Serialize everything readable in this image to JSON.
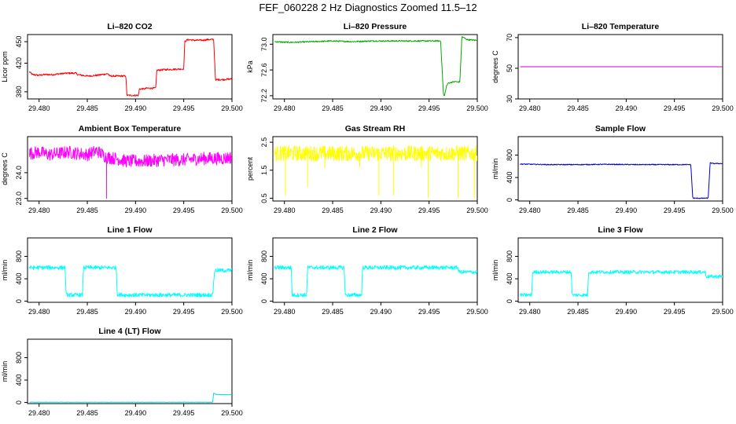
{
  "page_title": "FEF_060228  2 Hz Diagnostics Zoomed 11.5–12",
  "chart_data": [
    {
      "type": "line",
      "title": "Li–820 CO2",
      "ylabel": "Licor ppm",
      "color": "#ff0000",
      "xlim": [
        29.4788,
        29.5
      ],
      "ylim": [
        370,
        460
      ],
      "xticks": [
        "29.480",
        "29.485",
        "29.490",
        "29.495",
        "29.500"
      ],
      "yticks": [
        "380",
        "420",
        "450"
      ],
      "series": [
        {
          "x": [
            29.479,
            29.4793,
            29.48,
            29.4805,
            29.4815,
            29.482,
            29.483,
            29.4838,
            29.484,
            29.485,
            29.486,
            29.487,
            29.4872,
            29.4873,
            29.488,
            29.489,
            29.4891,
            29.4903,
            29.4904,
            29.491,
            29.4911,
            29.4921,
            29.4922,
            29.493,
            29.4931,
            29.495,
            29.4951,
            29.4953,
            29.4955,
            29.496,
            29.497,
            29.4975,
            29.4981,
            29.4983,
            29.4984,
            29.499,
            29.5
          ],
          "y": [
            408,
            404,
            403,
            404,
            404,
            405,
            406,
            406,
            404,
            402,
            403,
            405,
            405,
            402,
            402,
            402,
            375,
            375,
            384,
            384,
            385,
            385,
            410,
            411,
            411,
            412,
            450,
            452,
            453,
            452,
            452,
            453,
            453,
            395,
            397,
            397,
            398
          ],
          "jitter": 1.2
        }
      ]
    },
    {
      "type": "line",
      "title": "Li–820 Pressure",
      "ylabel": "kPa",
      "color": "#00aa00",
      "xlim": [
        29.4788,
        29.5
      ],
      "ylim": [
        72.15,
        73.15
      ],
      "xticks": [
        "29.480",
        "29.485",
        "29.490",
        "29.495",
        "29.500"
      ],
      "yticks": [
        "72.2",
        "72.6",
        "73.0"
      ],
      "series": [
        {
          "x": [
            29.479,
            29.48,
            29.481,
            29.483,
            29.485,
            29.487,
            29.489,
            29.491,
            29.493,
            29.495,
            29.4962,
            29.4965,
            29.4966,
            29.4968,
            29.497,
            29.4972,
            29.4973,
            29.4978,
            29.498,
            29.4982,
            29.4984,
            29.4986,
            29.499,
            29.5
          ],
          "y": [
            73.04,
            73.03,
            73.03,
            73.04,
            73.05,
            73.04,
            73.05,
            73.05,
            73.05,
            73.05,
            73.05,
            72.2,
            72.2,
            72.35,
            72.4,
            72.4,
            72.41,
            72.42,
            72.41,
            72.42,
            73.12,
            73.1,
            73.07,
            73.06
          ],
          "jitter": 0.01
        }
      ]
    },
    {
      "type": "line",
      "title": "Li–820 Temperature",
      "ylabel": "degrees C",
      "color": "#cc00cc",
      "xlim": [
        29.4788,
        29.5
      ],
      "ylim": [
        30,
        72
      ],
      "xticks": [
        "29.480",
        "29.485",
        "29.490",
        "29.495",
        "29.500"
      ],
      "yticks": [
        "30",
        "50",
        "70"
      ],
      "series": [
        {
          "x": [
            29.479,
            29.5
          ],
          "y": [
            51,
            51
          ],
          "jitter": 0
        }
      ]
    },
    {
      "type": "line",
      "title": "Ambient Box Temperature",
      "ylabel": "degrees C",
      "color": "#ff00ff",
      "xlim": [
        29.4788,
        29.5
      ],
      "ylim": [
        22.9,
        25.4
      ],
      "xticks": [
        "29.480",
        "29.485",
        "29.490",
        "29.495",
        "29.500"
      ],
      "yticks": [
        "23.0",
        "24.0"
      ],
      "series": [
        {
          "x": [
            29.479,
            29.48,
            29.481,
            29.483,
            29.485,
            29.486,
            29.487,
            29.488,
            29.489,
            29.491,
            29.493,
            29.495,
            29.497,
            29.499,
            29.5
          ],
          "y": [
            24.75,
            24.8,
            24.7,
            24.8,
            24.7,
            24.85,
            24.6,
            24.55,
            24.45,
            24.45,
            24.5,
            24.5,
            24.55,
            24.55,
            24.6
          ],
          "jitter": 0.25,
          "spike": {
            "x": 29.487,
            "y": 23.0
          }
        }
      ]
    },
    {
      "type": "line",
      "title": "Gas Stream RH",
      "ylabel": "percent",
      "color": "#ffff00",
      "xlim": [
        29.4788,
        29.5
      ],
      "ylim": [
        0.4,
        2.7
      ],
      "xticks": [
        "29.480",
        "29.485",
        "29.490",
        "29.495",
        "29.500"
      ],
      "yticks": [
        "0.5",
        "1.5",
        "2.5"
      ],
      "series": [
        {
          "x": [
            29.479,
            29.5
          ],
          "y": [
            2.1,
            2.1
          ],
          "jitter": 0.28,
          "dips": [
            [
              29.4801,
              0.6
            ],
            [
              29.4824,
              0.9
            ],
            [
              29.4842,
              1.6
            ],
            [
              29.4878,
              1.6
            ],
            [
              29.4898,
              0.6
            ],
            [
              29.4913,
              0.6
            ],
            [
              29.4942,
              1.6
            ],
            [
              29.4949,
              0.5
            ],
            [
              29.498,
              0.5
            ],
            [
              29.4997,
              0.5
            ]
          ]
        }
      ]
    },
    {
      "type": "line",
      "title": "Sample Flow",
      "ylabel": "ml/min",
      "color": "#0000cc",
      "xlim": [
        29.4788,
        29.5
      ],
      "ylim": [
        -20,
        1130
      ],
      "xticks": [
        "29.480",
        "29.485",
        "29.490",
        "29.495",
        "29.500"
      ],
      "yticks": [
        "0",
        "400",
        "800"
      ],
      "series": [
        {
          "x": [
            29.479,
            29.482,
            29.485,
            29.488,
            29.491,
            29.494,
            29.4967,
            29.4969,
            29.4985,
            29.4987,
            29.499,
            29.5
          ],
          "y": [
            640,
            630,
            630,
            635,
            630,
            630,
            630,
            30,
            30,
            660,
            650,
            650
          ],
          "jitter": 8
        }
      ]
    },
    {
      "type": "line",
      "title": "Line 1 Flow",
      "ylabel": "ml/min",
      "color": "#00ffff",
      "xlim": [
        29.4788,
        29.5
      ],
      "ylim": [
        -20,
        1130
      ],
      "xticks": [
        "29.480",
        "29.485",
        "29.490",
        "29.495",
        "29.500"
      ],
      "yticks": [
        "0",
        "400",
        "800"
      ],
      "series": [
        {
          "x": [
            29.479,
            29.4827,
            29.4828,
            29.4845,
            29.4846,
            29.488,
            29.4881,
            29.489,
            29.492,
            29.495,
            29.498,
            29.4982,
            29.5
          ],
          "y": [
            600,
            600,
            110,
            110,
            600,
            600,
            120,
            110,
            110,
            110,
            110,
            550,
            550
          ],
          "jitter": 35
        }
      ]
    },
    {
      "type": "line",
      "title": "Line 2 Flow",
      "ylabel": "ml/min",
      "color": "#00ffff",
      "xlim": [
        29.4788,
        29.5
      ],
      "ylim": [
        -20,
        1130
      ],
      "xticks": [
        "29.480",
        "29.485",
        "29.490",
        "29.495",
        "29.500"
      ],
      "yticks": [
        "0",
        "400",
        "800"
      ],
      "series": [
        {
          "x": [
            29.479,
            29.4807,
            29.4808,
            29.4823,
            29.4824,
            29.4862,
            29.4863,
            29.488,
            29.4881,
            29.498,
            29.4981,
            29.5
          ],
          "y": [
            600,
            600,
            110,
            110,
            600,
            600,
            110,
            110,
            600,
            600,
            520,
            520
          ],
          "jitter": 35
        }
      ]
    },
    {
      "type": "line",
      "title": "Line 3 Flow",
      "ylabel": "ml/min",
      "color": "#00ffff",
      "xlim": [
        29.4788,
        29.5
      ],
      "ylim": [
        -20,
        1130
      ],
      "xticks": [
        "29.480",
        "29.485",
        "29.490",
        "29.495",
        "29.500"
      ],
      "yticks": [
        "0",
        "400",
        "800"
      ],
      "series": [
        {
          "x": [
            29.479,
            29.4802,
            29.4803,
            29.4843,
            29.4844,
            29.486,
            29.4861,
            29.49,
            29.495,
            29.4982,
            29.4983,
            29.5
          ],
          "y": [
            110,
            110,
            520,
            520,
            110,
            110,
            520,
            520,
            520,
            520,
            440,
            440
          ],
          "jitter": 30
        }
      ]
    },
    {
      "type": "line",
      "title": "Line 4 (LT) Flow",
      "ylabel": "ml/min",
      "color": "#00e0e0",
      "xlim": [
        29.4788,
        29.5
      ],
      "ylim": [
        -20,
        1130
      ],
      "xticks": [
        "29.480",
        "29.485",
        "29.490",
        "29.495",
        "29.500"
      ],
      "yticks": [
        "0",
        "400",
        "800"
      ],
      "series": [
        {
          "x": [
            29.479,
            29.498,
            29.4981,
            29.4983,
            29.499,
            29.5
          ],
          "y": [
            5,
            5,
            170,
            145,
            140,
            140
          ],
          "jitter": 3
        }
      ]
    }
  ]
}
